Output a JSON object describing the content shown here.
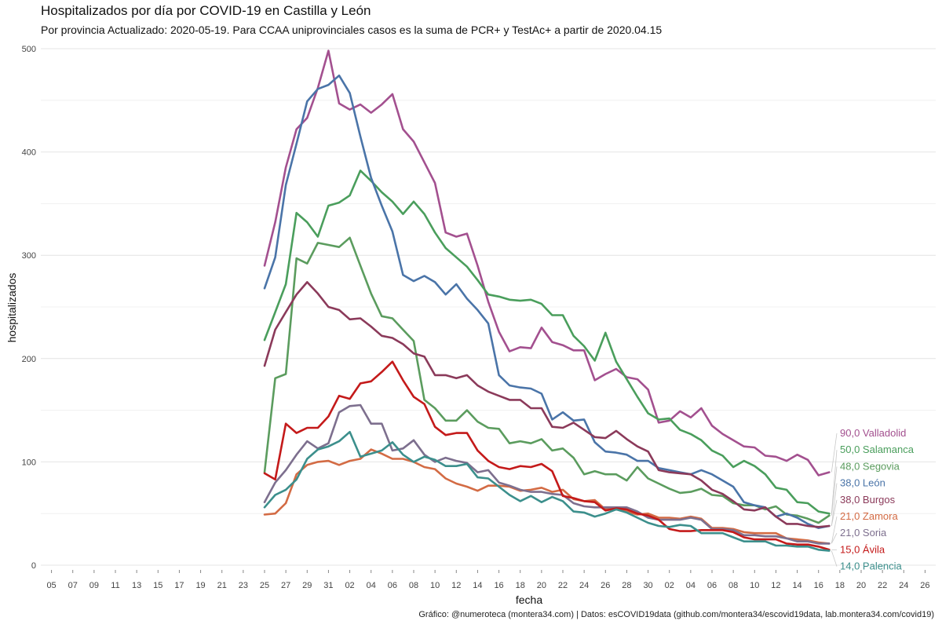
{
  "header": {
    "title": "Hospitalizados por día por COVID-19 en Castilla y León",
    "subtitle": "Por provincia  Actualizado: 2020-05-19. Para CCAA uniprovinciales casos es la suma de PCR+ y TestAc+ a partir de 2020.04.15"
  },
  "caption": "Gráfico: @numeroteca (montera34.com) | Datos: esCOVID19data (github.com/montera34/escovid19data, lab.montera34.com/covid19)",
  "chart_data": {
    "type": "line",
    "title": "Hospitalizados por día por COVID-19 en Castilla y León",
    "subtitle": "Por provincia  Actualizado: 2020-05-19. Para CCAA uniprovinciales casos es la suma de PCR+ y TestAc+ a partir de 2020.04.15",
    "xlabel": "fecha",
    "ylabel": "hospitalizados",
    "xlim": [
      "2020-03-04",
      "2020-05-27"
    ],
    "ylim": [
      0,
      500
    ],
    "yticks": [
      0,
      100,
      200,
      300,
      400,
      500
    ],
    "xticks": [
      "05",
      "07",
      "09",
      "11",
      "13",
      "15",
      "17",
      "19",
      "21",
      "23",
      "25",
      "27",
      "29",
      "31",
      "02",
      "04",
      "06",
      "08",
      "10",
      "12",
      "14",
      "16",
      "18",
      "20",
      "22",
      "24",
      "26",
      "28",
      "30",
      "02",
      "04",
      "06",
      "08",
      "10",
      "12",
      "14",
      "16",
      "18",
      "20",
      "22",
      "24",
      "26"
    ],
    "grid": true,
    "legend": "end-labels",
    "x_start": "2020-03-25",
    "series": [
      {
        "name": "Valladolid",
        "label": "90,0 Valladolid",
        "color": "#a3508f",
        "values": [
          290,
          332,
          385,
          422,
          433,
          462,
          498,
          447,
          441,
          446,
          438,
          446,
          456,
          422,
          410,
          390,
          370,
          322,
          318,
          321,
          290,
          255,
          226,
          207,
          211,
          210,
          230,
          216,
          213,
          208,
          208,
          179,
          185,
          190,
          182,
          180,
          170,
          138,
          140,
          149,
          143,
          152,
          135,
          127,
          121,
          115,
          114,
          106,
          105,
          101,
          107,
          102,
          87,
          90
        ]
      },
      {
        "name": "Salamanca",
        "label": "50,0 Salamanca",
        "color": "#4a9e5c",
        "values": [
          218,
          245,
          272,
          341,
          332,
          318,
          348,
          351,
          358,
          382,
          372,
          361,
          352,
          340,
          352,
          340,
          322,
          307,
          298,
          289,
          276,
          262,
          260,
          257,
          256,
          257,
          253,
          242,
          242,
          222,
          212,
          198,
          225,
          197,
          180,
          163,
          147,
          141,
          142,
          131,
          127,
          121,
          111,
          106,
          95,
          101,
          96,
          88,
          75,
          73,
          61,
          60,
          52,
          50
        ]
      },
      {
        "name": "Segovia",
        "label": "48,0 Segovia",
        "color": "#5b9c5e",
        "values": [
          90,
          181,
          185,
          297,
          292,
          312,
          310,
          308,
          317,
          290,
          263,
          241,
          239,
          228,
          217,
          160,
          152,
          140,
          140,
          150,
          139,
          133,
          132,
          118,
          120,
          118,
          122,
          111,
          113,
          104,
          88,
          91,
          88,
          88,
          82,
          95,
          84,
          79,
          74,
          70,
          71,
          74,
          68,
          67,
          60,
          58,
          58,
          54,
          57,
          49,
          48,
          45,
          41,
          48
        ]
      },
      {
        "name": "León",
        "label": "38,0 León",
        "color": "#4a74a8",
        "values": [
          268,
          298,
          368,
          408,
          449,
          461,
          465,
          474,
          457,
          415,
          375,
          348,
          323,
          281,
          275,
          280,
          274,
          262,
          272,
          258,
          247,
          234,
          184,
          174,
          172,
          171,
          166,
          141,
          148,
          140,
          141,
          119,
          110,
          109,
          107,
          101,
          101,
          94,
          92,
          90,
          88,
          92,
          88,
          82,
          76,
          61,
          58,
          56,
          47,
          50,
          46,
          40,
          36,
          38
        ]
      },
      {
        "name": "Burgos",
        "label": "38,0 Burgos",
        "color": "#8b3a5a",
        "values": [
          193,
          228,
          245,
          262,
          274,
          263,
          250,
          247,
          238,
          239,
          231,
          222,
          220,
          214,
          205,
          202,
          184,
          184,
          181,
          184,
          174,
          168,
          164,
          160,
          160,
          152,
          152,
          134,
          133,
          138,
          131,
          124,
          123,
          130,
          122,
          115,
          110,
          92,
          90,
          89,
          88,
          82,
          73,
          69,
          62,
          54,
          53,
          56,
          47,
          40,
          40,
          38,
          37,
          38
        ]
      },
      {
        "name": "Zamora",
        "label": "21,0 Zamora",
        "color": "#d36b44",
        "values": [
          49,
          50,
          60,
          88,
          97,
          100,
          101,
          97,
          101,
          103,
          112,
          108,
          103,
          103,
          100,
          95,
          93,
          84,
          79,
          76,
          72,
          77,
          77,
          76,
          72,
          73,
          75,
          71,
          73,
          64,
          62,
          63,
          54,
          56,
          52,
          49,
          50,
          46,
          46,
          45,
          47,
          45,
          36,
          36,
          35,
          32,
          31,
          31,
          31,
          26,
          25,
          24,
          22,
          21
        ]
      },
      {
        "name": "Soria",
        "label": "21,0 Soria",
        "color": "#7d6f8e",
        "values": [
          61,
          80,
          92,
          107,
          120,
          113,
          118,
          148,
          154,
          155,
          137,
          137,
          111,
          113,
          121,
          107,
          100,
          104,
          101,
          99,
          90,
          92,
          80,
          77,
          73,
          71,
          71,
          69,
          68,
          60,
          57,
          56,
          56,
          56,
          56,
          52,
          46,
          44,
          44,
          44,
          46,
          44,
          35,
          35,
          34,
          29,
          29,
          28,
          28,
          26,
          23,
          23,
          21,
          21
        ]
      },
      {
        "name": "Ávila",
        "label": "15,0 Ávila",
        "color": "#c41a1a",
        "values": [
          89,
          83,
          137,
          128,
          133,
          133,
          144,
          164,
          161,
          176,
          178,
          187,
          197,
          179,
          163,
          156,
          134,
          126,
          128,
          128,
          111,
          101,
          95,
          93,
          96,
          95,
          98,
          91,
          67,
          65,
          62,
          61,
          53,
          55,
          54,
          50,
          48,
          44,
          35,
          33,
          33,
          34,
          34,
          34,
          32,
          27,
          25,
          25,
          25,
          21,
          20,
          20,
          18,
          15
        ]
      },
      {
        "name": "Palencia",
        "label": "14,0 Palencia",
        "color": "#3c8f8c",
        "values": [
          56,
          68,
          73,
          83,
          103,
          112,
          115,
          120,
          129,
          105,
          108,
          111,
          119,
          107,
          100,
          105,
          102,
          96,
          96,
          98,
          85,
          84,
          76,
          68,
          62,
          67,
          61,
          66,
          62,
          52,
          51,
          47,
          50,
          54,
          51,
          46,
          41,
          38,
          37,
          39,
          38,
          31,
          31,
          31,
          27,
          23,
          23,
          23,
          19,
          19,
          18,
          18,
          15,
          14
        ]
      }
    ]
  }
}
